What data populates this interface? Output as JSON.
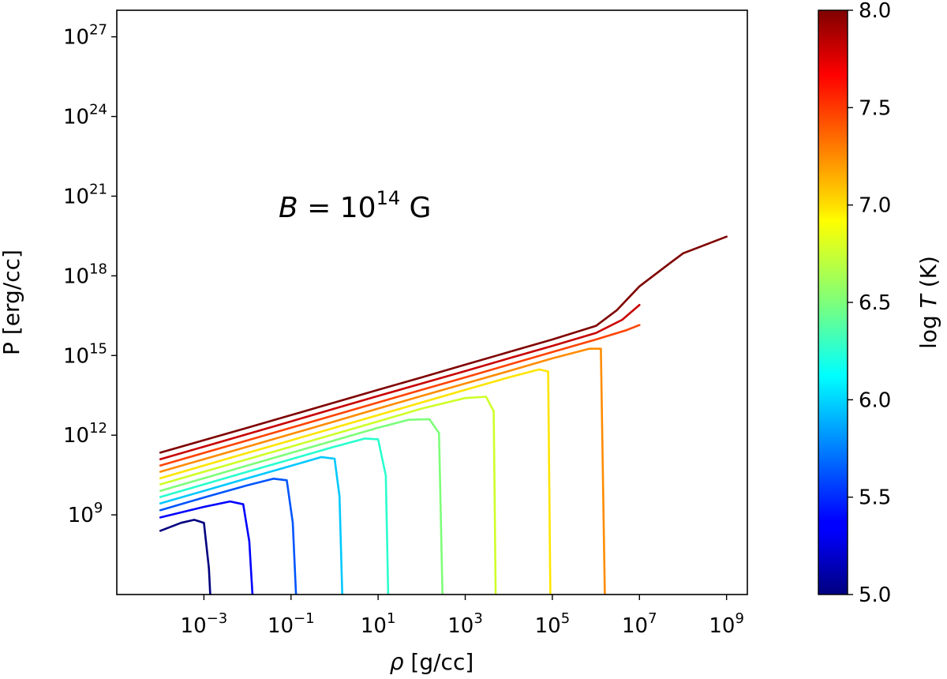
{
  "chart_data": {
    "type": "line",
    "xlabel": {
      "symbol": "ρ",
      "unit": " [g/cc]"
    },
    "ylabel": "P [erg/cc]",
    "x_scale": "log",
    "y_scale": "log",
    "xlim": [
      1e-05,
      3000000000.0
    ],
    "ylim": [
      1000000.0,
      1e+28
    ],
    "x_ticks": [
      {
        "base": "10",
        "exp": "−3",
        "value": 0.001
      },
      {
        "base": "10",
        "exp": "−1",
        "value": 0.1
      },
      {
        "base": "10",
        "exp": "1",
        "value": 10
      },
      {
        "base": "10",
        "exp": "3",
        "value": 1000
      },
      {
        "base": "10",
        "exp": "5",
        "value": 100000
      },
      {
        "base": "10",
        "exp": "7",
        "value": 10000000
      },
      {
        "base": "10",
        "exp": "9",
        "value": 1000000000
      }
    ],
    "y_ticks": [
      {
        "base": "10",
        "exp": "9",
        "value": 1000000000.0
      },
      {
        "base": "10",
        "exp": "12",
        "value": 1000000000000.0
      },
      {
        "base": "10",
        "exp": "15",
        "value": 1000000000000000.0
      },
      {
        "base": "10",
        "exp": "18",
        "value": 1e+18
      },
      {
        "base": "10",
        "exp": "21",
        "value": 1e+21
      },
      {
        "base": "10",
        "exp": "24",
        "value": 1e+24
      },
      {
        "base": "10",
        "exp": "27",
        "value": 1e+27
      }
    ],
    "annotation": {
      "lhs": "B",
      "eq": " = 10",
      "exp": "14",
      "unit": " G",
      "x": 0.8,
      "y": 1e+20
    },
    "grid": false,
    "legend": "none",
    "colorbar": {
      "label_prefix": "log ",
      "label_var": "T",
      "label_suffix": " (K)",
      "min": 5.0,
      "max": 8.0,
      "ticks": [
        "5.0",
        "5.5",
        "6.0",
        "6.5",
        "7.0",
        "7.5",
        "8.0"
      ],
      "colormap": "jet"
    },
    "series": [
      {
        "logT": 5.0,
        "color": "#00007f",
        "x": [
          0.0001,
          0.0003,
          0.0006,
          0.001,
          0.0013,
          0.0014,
          0.00145
        ],
        "y": [
          250000000.0,
          500000000.0,
          650000000.0,
          500000000.0,
          10000000.0,
          1000000.0,
          1000000.0
        ]
      },
      {
        "logT": 5.33,
        "color": "#0000ff",
        "x": [
          0.0001,
          0.001,
          0.004,
          0.008,
          0.011,
          0.013,
          0.0135
        ],
        "y": [
          800000000.0,
          2000000000.0,
          3200000000.0,
          2500000000.0,
          100000000.0,
          1000000.0,
          1000000.0
        ]
      },
      {
        "logT": 5.67,
        "color": "#0055ff",
        "x": [
          0.0001,
          0.001,
          0.01,
          0.04,
          0.08,
          0.11,
          0.13,
          0.135
        ],
        "y": [
          1500000000.0,
          4500000000.0,
          13000000000.0,
          23000000000.0,
          20000000000.0,
          500000000.0,
          1000000.0,
          1000000.0
        ]
      },
      {
        "logT": 6.0,
        "color": "#00c8ff",
        "x": [
          0.0001,
          0.001,
          0.01,
          0.1,
          0.5,
          1.0,
          1.3,
          1.5,
          1.55
        ],
        "y": [
          2700000000.0,
          8000000000.0,
          24000000000.0,
          70000000000.0,
          150000000000.0,
          130000000000.0,
          5000000000.0,
          1000000.0,
          1000000.0
        ]
      },
      {
        "logT": 6.33,
        "color": "#29ffce",
        "x": [
          0.0001,
          0.001,
          0.01,
          0.1,
          1,
          5,
          10,
          15,
          17,
          17.5
        ],
        "y": [
          4700000000.0,
          14000000000.0,
          42000000000.0,
          125000000000.0,
          370000000000.0,
          750000000000.0,
          700000000000.0,
          30000000000.0,
          1000000.0,
          1000000.0
        ]
      },
      {
        "logT": 6.5,
        "color": "#7dff7a",
        "x": [
          0.0001,
          0.001,
          0.01,
          0.1,
          1,
          10,
          50,
          150,
          250,
          300,
          310
        ],
        "y": [
          8000000000.0,
          24000000000.0,
          72000000000.0,
          215000000000.0,
          640000000000.0,
          1900000000000.0,
          3800000000000.0,
          4000000000000.0,
          1200000000000.0,
          1000000.0,
          1000000.0
        ]
      },
      {
        "logT": 6.83,
        "color": "#ceff29",
        "x": [
          0.0001,
          0.001,
          0.01,
          0.1,
          1,
          10,
          100,
          1000,
          3000,
          4500,
          5000,
          5100
        ],
        "y": [
          14000000000.0,
          42000000000.0,
          125000000000.0,
          370000000000.0,
          1100000000000.0,
          3300000000000.0,
          10000000000000.0,
          25000000000000.0,
          28000000000000.0,
          8000000000000.0,
          1000000.0,
          1000000.0
        ]
      },
      {
        "logT": 7.0,
        "color": "#ffe500",
        "x": [
          0.0001,
          0.001,
          0.01,
          0.1,
          1,
          10,
          100,
          1000,
          10000,
          50000,
          80000,
          90000,
          92000
        ],
        "y": [
          24000000000.0,
          72000000000.0,
          215000000000.0,
          640000000000.0,
          1900000000000.0,
          5700000000000.0,
          17000000000000.0,
          51000000000000.0,
          150000000000000.0,
          300000000000000.0,
          250000000000000.0,
          1000000.0,
          1000000.0
        ]
      },
      {
        "logT": 7.33,
        "color": "#ff8c00",
        "x": [
          0.0001,
          0.001,
          0.01,
          0.1,
          1,
          10,
          100,
          1000,
          10000,
          100000,
          700000,
          1300000,
          1600000,
          1650000
        ],
        "y": [
          42000000000.0,
          125000000000.0,
          370000000000.0,
          1100000000000.0,
          3300000000000.0,
          10000000000000.0,
          30000000000000.0,
          88000000000000.0,
          260000000000000.0,
          780000000000000.0,
          1800000000000000.0,
          1800000000000000.0,
          1000000.0,
          1000000.0
        ]
      },
      {
        "logT": 7.5,
        "color": "#ff4400",
        "x": [
          0.0001,
          0.001,
          0.01,
          0.1,
          1,
          10,
          100,
          1000,
          10000,
          100000,
          1000000,
          5000000,
          10000000
        ],
        "y": [
          72000000000.0,
          215000000000.0,
          640000000000.0,
          1900000000000.0,
          5700000000000.0,
          17000000000000.0,
          51000000000000.0,
          150000000000000.0,
          450000000000000.0,
          1350000000000000.0,
          4000000000000000.0,
          9000000000000000.0,
          1.4e+16
        ]
      },
      {
        "logT": 7.83,
        "color": "#c80000",
        "x": [
          0.0001,
          0.001,
          0.01,
          0.1,
          1,
          10,
          100,
          1000,
          10000,
          100000,
          1000000,
          4000000,
          10000000
        ],
        "y": [
          125000000000.0,
          370000000000.0,
          1100000000000.0,
          3300000000000.0,
          10000000000000.0,
          30000000000000.0,
          88000000000000.0,
          260000000000000.0,
          780000000000000.0,
          2300000000000000.0,
          7000000000000000.0,
          2.2e+16,
          8e+16
        ]
      },
      {
        "logT": 8.0,
        "color": "#7f0000",
        "x": [
          0.0001,
          0.001,
          0.01,
          0.1,
          1,
          10,
          100,
          1000,
          10000,
          100000,
          1000000,
          3000000,
          10000000,
          50000000,
          100000000,
          1000000000
        ],
        "y": [
          220000000000.0,
          650000000000.0,
          1900000000000.0,
          5700000000000.0,
          17000000000000.0,
          51000000000000.0,
          150000000000000.0,
          450000000000000.0,
          1350000000000000.0,
          4000000000000000.0,
          1.3e+16,
          5e+16,
          4e+17,
          3e+18,
          7e+18,
          3e+19
        ]
      }
    ]
  }
}
